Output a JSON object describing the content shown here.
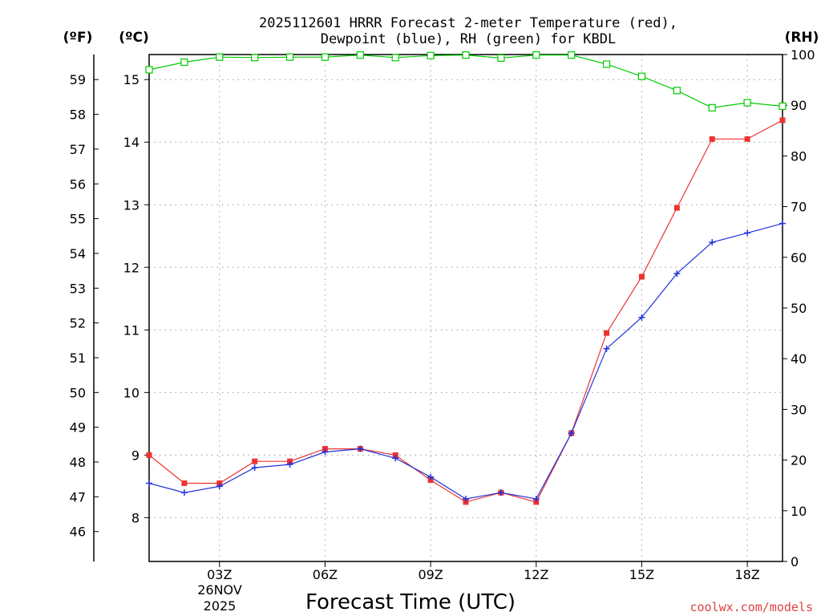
{
  "chart_data": {
    "type": "line",
    "title_line1": "2025112601 HRRR Forecast 2-meter Temperature (red),",
    "title_line2": "Dewpoint (blue), RH (green) for KBDL",
    "xlabel": "Forecast Time (UTC)",
    "unit_f": "(ºF)",
    "unit_c": "(ºC)",
    "unit_rh": "(RH)",
    "date_line1": "26NOV",
    "date_line2": "2025",
    "watermark": "coolwx.com/models",
    "x_hours": [
      1,
      2,
      3,
      4,
      5,
      6,
      7,
      8,
      9,
      10,
      11,
      12,
      13,
      14,
      15,
      16,
      17,
      18,
      19
    ],
    "x_ticks": [
      {
        "hour": 3,
        "label": "03Z"
      },
      {
        "hour": 6,
        "label": "06Z"
      },
      {
        "hour": 9,
        "label": "09Z"
      },
      {
        "hour": 12,
        "label": "12Z"
      },
      {
        "hour": 15,
        "label": "15Z"
      },
      {
        "hour": 18,
        "label": "18Z"
      }
    ],
    "xlim": [
      1,
      19
    ],
    "ylim_c": [
      7.3,
      15.4
    ],
    "ylim_rh": [
      0,
      100
    ],
    "c_ticks": [
      8,
      9,
      10,
      11,
      12,
      13,
      14,
      15
    ],
    "f_ticks": [
      46,
      47,
      48,
      49,
      50,
      51,
      52,
      53,
      54,
      55,
      56,
      57,
      58,
      59
    ],
    "rh_ticks": [
      0,
      10,
      20,
      30,
      40,
      50,
      60,
      70,
      80,
      90,
      100
    ],
    "series": [
      {
        "name": "Temperature",
        "color": "#ee3333",
        "marker": "filled-square",
        "axis": "c",
        "values": [
          9.0,
          8.55,
          8.55,
          8.9,
          8.9,
          9.1,
          9.1,
          9.0,
          8.6,
          8.25,
          8.4,
          8.25,
          9.35,
          10.95,
          11.85,
          12.95,
          14.05,
          14.05,
          14.35
        ]
      },
      {
        "name": "Dewpoint",
        "color": "#2233dd",
        "marker": "plus",
        "axis": "c",
        "values": [
          8.55,
          8.4,
          8.5,
          8.8,
          8.85,
          9.05,
          9.1,
          8.95,
          8.65,
          8.3,
          8.4,
          8.3,
          9.35,
          10.7,
          11.2,
          11.9,
          12.4,
          12.55,
          12.7
        ]
      },
      {
        "name": "RH",
        "color": "#00cc00",
        "marker": "open-square",
        "axis": "rh",
        "values": [
          97,
          98.5,
          99.5,
          99.4,
          99.5,
          99.5,
          99.9,
          99.4,
          99.8,
          99.9,
          99.3,
          99.9,
          99.9,
          98.1,
          95.7,
          92.9,
          89.5,
          90.5,
          89.8
        ]
      }
    ],
    "grid": true
  }
}
